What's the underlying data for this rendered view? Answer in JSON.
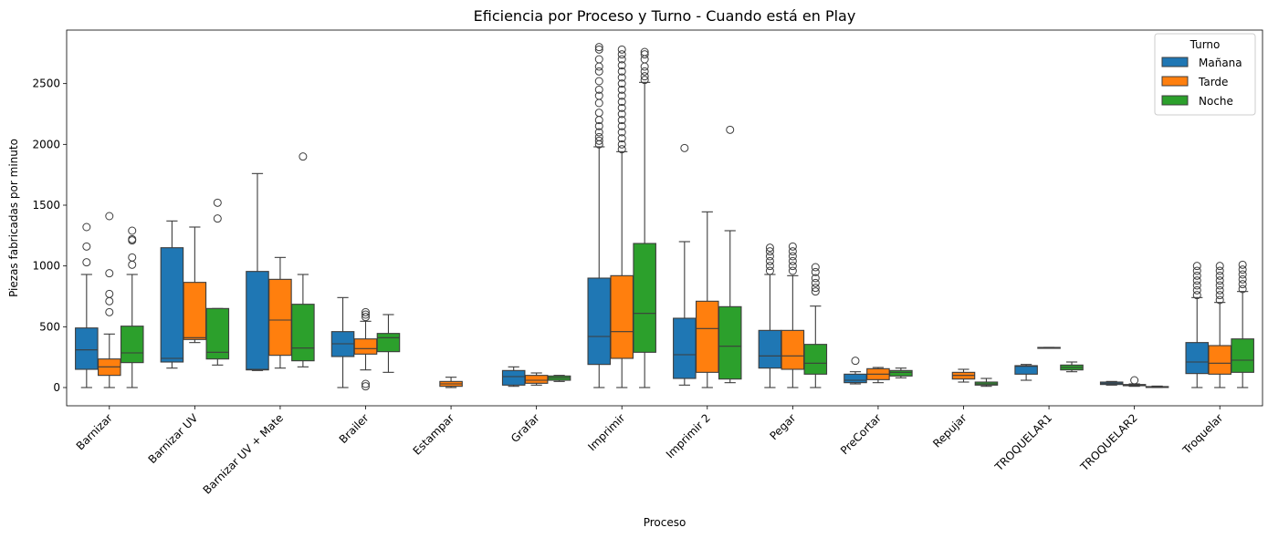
{
  "chart_data": {
    "type": "box",
    "title": "Eficiencia por Proceso y Turno - Cuando está en Play",
    "xlabel": "Proceso",
    "ylabel": "Piezas fabricadas por minuto",
    "ylim": [
      -150,
      2940
    ],
    "yticks": [
      0,
      500,
      1000,
      1500,
      2000,
      2500
    ],
    "grid": false,
    "legend": {
      "title": "Turno",
      "position": "top-right"
    },
    "categories": [
      "Barnizar",
      "Barnizar UV",
      "Barnizar UV + Mate",
      "Brailer",
      "Estampar",
      "Grafar",
      "Imprimir",
      "Imprimir 2",
      "Pegar",
      "PreCortar",
      "Repujar",
      "TROQUELAR1",
      "TROQUELAR2",
      "Troquelar"
    ],
    "series": [
      {
        "name": "Mañana",
        "color": "#1f77b4",
        "boxes": [
          {
            "min": 0,
            "q1": 150,
            "median": 310,
            "q3": 490,
            "max": 930,
            "outliers": [
              1030,
              1160,
              1320
            ]
          },
          {
            "min": 160,
            "q1": 210,
            "median": 240,
            "q3": 1150,
            "max": 1370,
            "outliers": []
          },
          {
            "min": 140,
            "q1": 145,
            "median": 150,
            "q3": 955,
            "max": 1760,
            "outliers": []
          },
          {
            "min": 0,
            "q1": 255,
            "median": 360,
            "q3": 460,
            "max": 740,
            "outliers": []
          },
          null,
          {
            "min": 10,
            "q1": 20,
            "median": 90,
            "q3": 140,
            "max": 170,
            "outliers": []
          },
          {
            "min": 0,
            "q1": 190,
            "median": 420,
            "q3": 900,
            "max": 1980,
            "outliers": [
              2000,
              2030,
              2060,
              2100,
              2150,
              2200,
              2260,
              2340,
              2400,
              2450,
              2520,
              2600,
              2640,
              2700,
              2780,
              2800
            ]
          },
          {
            "min": 20,
            "q1": 75,
            "median": 270,
            "q3": 570,
            "max": 1200,
            "outliers": [
              1970
            ]
          },
          {
            "min": 0,
            "q1": 160,
            "median": 260,
            "q3": 470,
            "max": 930,
            "outliers": [
              960,
              1000,
              1040,
              1080,
              1120,
              1150
            ]
          },
          {
            "min": 30,
            "q1": 40,
            "median": 60,
            "q3": 110,
            "max": 130,
            "outliers": [
              220
            ]
          },
          null,
          {
            "min": 60,
            "q1": 110,
            "median": 175,
            "q3": 180,
            "max": 190,
            "outliers": []
          },
          {
            "min": 20,
            "q1": 25,
            "median": 35,
            "q3": 45,
            "max": 50,
            "outliers": []
          },
          {
            "min": 0,
            "q1": 115,
            "median": 210,
            "q3": 370,
            "max": 740,
            "outliers": [
              760,
              800,
              840,
              880,
              920,
              960,
              1000
            ]
          }
        ]
      },
      {
        "name": "Tarde",
        "color": "#ff7f0e",
        "boxes": [
          {
            "min": 0,
            "q1": 100,
            "median": 170,
            "q3": 235,
            "max": 440,
            "outliers": [
              620,
              710,
              770,
              940,
              1410
            ]
          },
          {
            "min": 370,
            "q1": 395,
            "median": 410,
            "q3": 865,
            "max": 1320,
            "outliers": []
          },
          {
            "min": 160,
            "q1": 265,
            "median": 555,
            "q3": 890,
            "max": 1070,
            "outliers": []
          },
          {
            "min": 145,
            "q1": 275,
            "median": 320,
            "q3": 400,
            "max": 545,
            "outliers": [
              10,
              30,
              580,
              600,
              620
            ]
          },
          {
            "min": 0,
            "q1": 10,
            "median": 30,
            "q3": 50,
            "max": 85,
            "outliers": []
          },
          {
            "min": 20,
            "q1": 35,
            "median": 60,
            "q3": 100,
            "max": 120,
            "outliers": []
          },
          {
            "min": 0,
            "q1": 240,
            "median": 460,
            "q3": 920,
            "max": 1940,
            "outliers": [
              1960,
              2000,
              2050,
              2100,
              2150,
              2200,
              2250,
              2300,
              2350,
              2400,
              2450,
              2500,
              2550,
              2600,
              2650,
              2700,
              2740,
              2780
            ]
          },
          {
            "min": 0,
            "q1": 125,
            "median": 485,
            "q3": 710,
            "max": 1445,
            "outliers": []
          },
          {
            "min": 0,
            "q1": 150,
            "median": 260,
            "q3": 470,
            "max": 920,
            "outliers": [
              960,
              1000,
              1040,
              1080,
              1120,
              1160
            ]
          },
          {
            "min": 40,
            "q1": 65,
            "median": 110,
            "q3": 155,
            "max": 165,
            "outliers": []
          },
          {
            "min": 45,
            "q1": 70,
            "median": 100,
            "q3": 125,
            "max": 150,
            "outliers": []
          },
          {
            "min": 330,
            "q1": 330,
            "median": 330,
            "q3": 330,
            "max": 330,
            "outliers": []
          },
          {
            "min": 10,
            "q1": 15,
            "median": 20,
            "q3": 25,
            "max": 30,
            "outliers": [
              60
            ]
          },
          {
            "min": 0,
            "q1": 110,
            "median": 200,
            "q3": 345,
            "max": 700,
            "outliers": [
              720,
              760,
              800,
              840,
              880,
              920,
              960,
              1000
            ]
          }
        ]
      },
      {
        "name": "Noche",
        "color": "#2ca02c",
        "boxes": [
          {
            "min": 0,
            "q1": 205,
            "median": 285,
            "q3": 505,
            "max": 930,
            "outliers": [
              1010,
              1070,
              1210,
              1220,
              1290
            ]
          },
          {
            "min": 185,
            "q1": 235,
            "median": 290,
            "q3": 650,
            "max": 650,
            "outliers": [
              1390,
              1520
            ]
          },
          {
            "min": 170,
            "q1": 220,
            "median": 325,
            "q3": 685,
            "max": 930,
            "outliers": [
              1900
            ]
          },
          {
            "min": 125,
            "q1": 295,
            "median": 410,
            "q3": 445,
            "max": 600,
            "outliers": []
          },
          null,
          {
            "min": 50,
            "q1": 60,
            "median": 80,
            "q3": 95,
            "max": 100,
            "outliers": []
          },
          {
            "min": 0,
            "q1": 290,
            "median": 610,
            "q3": 1185,
            "max": 2510,
            "outliers": [
              2530,
              2560,
              2600,
              2640,
              2700,
              2740,
              2760
            ]
          },
          {
            "min": 40,
            "q1": 70,
            "median": 340,
            "q3": 665,
            "max": 1290,
            "outliers": [
              2120
            ]
          },
          {
            "min": 0,
            "q1": 110,
            "median": 200,
            "q3": 355,
            "max": 670,
            "outliers": [
              790,
              820,
              860,
              900,
              950,
              990
            ]
          },
          {
            "min": 80,
            "q1": 95,
            "median": 125,
            "q3": 140,
            "max": 160,
            "outliers": []
          },
          {
            "min": 10,
            "q1": 20,
            "median": 30,
            "q3": 45,
            "max": 75,
            "outliers": []
          },
          {
            "min": 130,
            "q1": 145,
            "median": 165,
            "q3": 185,
            "max": 210,
            "outliers": []
          },
          {
            "min": 0,
            "q1": 2,
            "median": 5,
            "q3": 8,
            "max": 12,
            "outliers": []
          },
          {
            "min": 0,
            "q1": 125,
            "median": 225,
            "q3": 400,
            "max": 790,
            "outliers": [
              810,
              850,
              890,
              930,
              970,
              1010
            ]
          }
        ]
      }
    ]
  }
}
